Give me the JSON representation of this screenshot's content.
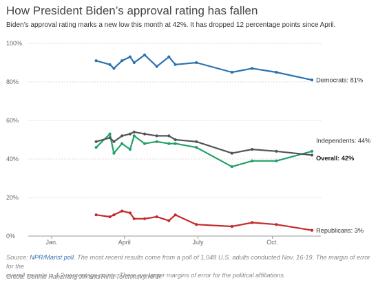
{
  "title": "How President Biden’s approval rating has fallen",
  "subtitle": "Biden’s approval rating marks a new low this month at 42%. It has dropped 12 percentage points since April.",
  "footer": {
    "source_label": "Source:",
    "source_link": "NPR/Marist poll.",
    "note_line1": "The most recent results come from a poll of 1,048 U.S. adults conducted Nov. 16-19. The margin of error for the",
    "note_line2": "overall sample is 4.2 percentage points. There are larger margins of error for the political affiliations.",
    "credit": "Credit: Connie Hanzhang Jin and Rina Torchinsky/NPR"
  },
  "chart_data": {
    "type": "line",
    "title": "How President Biden’s approval rating has fallen",
    "subtitle": "Biden’s approval rating marks a new low this month at 42%. It has dropped 12 percentage points since April.",
    "xlabel": "",
    "ylabel": "",
    "x_ticks": [
      "Jan.",
      "April",
      "July",
      "Oct."
    ],
    "x_tick_dates": [
      "2021-01-01",
      "2021-04-01",
      "2021-07-01",
      "2021-10-01"
    ],
    "xlim": [
      "2020-12-03",
      "2021-11-30"
    ],
    "y_ticks": [
      "0%",
      "20%",
      "40%",
      "60%",
      "80%",
      "100%"
    ],
    "y_tick_values": [
      0,
      20,
      40,
      60,
      80,
      100
    ],
    "ylim": [
      0,
      100
    ],
    "grid": "horizontal",
    "series": [
      {
        "name": "Democrats",
        "end_label": "Democrats: 81%",
        "color": "#2a72b0",
        "bold": false,
        "points": [
          {
            "x": "2021-02-25",
            "y": 91
          },
          {
            "x": "2021-03-14",
            "y": 89
          },
          {
            "x": "2021-03-19",
            "y": 87
          },
          {
            "x": "2021-03-29",
            "y": 91
          },
          {
            "x": "2021-04-08",
            "y": 93
          },
          {
            "x": "2021-04-13",
            "y": 90
          },
          {
            "x": "2021-04-26",
            "y": 94
          },
          {
            "x": "2021-05-11",
            "y": 88
          },
          {
            "x": "2021-05-26",
            "y": 93
          },
          {
            "x": "2021-06-03",
            "y": 89
          },
          {
            "x": "2021-06-29",
            "y": 90
          },
          {
            "x": "2021-08-12",
            "y": 85
          },
          {
            "x": "2021-09-06",
            "y": 87
          },
          {
            "x": "2021-10-06",
            "y": 85
          },
          {
            "x": "2021-11-19",
            "y": 81
          }
        ]
      },
      {
        "name": "Independents",
        "end_label": "Independents: 44%",
        "color": "#22a067",
        "bold": false,
        "points": [
          {
            "x": "2021-02-25",
            "y": 46
          },
          {
            "x": "2021-03-14",
            "y": 53
          },
          {
            "x": "2021-03-19",
            "y": 43
          },
          {
            "x": "2021-03-29",
            "y": 48
          },
          {
            "x": "2021-04-08",
            "y": 45
          },
          {
            "x": "2021-04-13",
            "y": 52
          },
          {
            "x": "2021-04-26",
            "y": 48
          },
          {
            "x": "2021-05-11",
            "y": 49
          },
          {
            "x": "2021-05-26",
            "y": 48
          },
          {
            "x": "2021-06-03",
            "y": 48
          },
          {
            "x": "2021-06-29",
            "y": 46
          },
          {
            "x": "2021-08-12",
            "y": 36
          },
          {
            "x": "2021-09-06",
            "y": 39
          },
          {
            "x": "2021-10-06",
            "y": 39
          },
          {
            "x": "2021-11-19",
            "y": 44
          }
        ]
      },
      {
        "name": "Overall",
        "end_label": "Overall: 42%",
        "color": "#555555",
        "bold": true,
        "points": [
          {
            "x": "2021-02-25",
            "y": 49
          },
          {
            "x": "2021-03-14",
            "y": 51
          },
          {
            "x": "2021-03-19",
            "y": 49
          },
          {
            "x": "2021-03-29",
            "y": 52
          },
          {
            "x": "2021-04-08",
            "y": 53
          },
          {
            "x": "2021-04-13",
            "y": 54
          },
          {
            "x": "2021-04-26",
            "y": 53
          },
          {
            "x": "2021-05-11",
            "y": 52
          },
          {
            "x": "2021-05-26",
            "y": 52
          },
          {
            "x": "2021-06-03",
            "y": 50
          },
          {
            "x": "2021-06-29",
            "y": 49
          },
          {
            "x": "2021-08-12",
            "y": 43
          },
          {
            "x": "2021-09-06",
            "y": 45
          },
          {
            "x": "2021-10-06",
            "y": 44
          },
          {
            "x": "2021-11-19",
            "y": 42
          }
        ]
      },
      {
        "name": "Republicans",
        "end_label": "Republicans: 3%",
        "color": "#c5282b",
        "bold": false,
        "points": [
          {
            "x": "2021-02-25",
            "y": 11
          },
          {
            "x": "2021-03-14",
            "y": 10
          },
          {
            "x": "2021-03-19",
            "y": 11
          },
          {
            "x": "2021-03-29",
            "y": 13
          },
          {
            "x": "2021-04-08",
            "y": 12
          },
          {
            "x": "2021-04-13",
            "y": 9
          },
          {
            "x": "2021-04-26",
            "y": 9
          },
          {
            "x": "2021-05-11",
            "y": 10
          },
          {
            "x": "2021-05-26",
            "y": 8
          },
          {
            "x": "2021-06-03",
            "y": 11
          },
          {
            "x": "2021-06-29",
            "y": 6
          },
          {
            "x": "2021-08-12",
            "y": 5
          },
          {
            "x": "2021-09-06",
            "y": 7
          },
          {
            "x": "2021-10-06",
            "y": 6
          },
          {
            "x": "2021-11-19",
            "y": 3
          }
        ]
      }
    ]
  }
}
